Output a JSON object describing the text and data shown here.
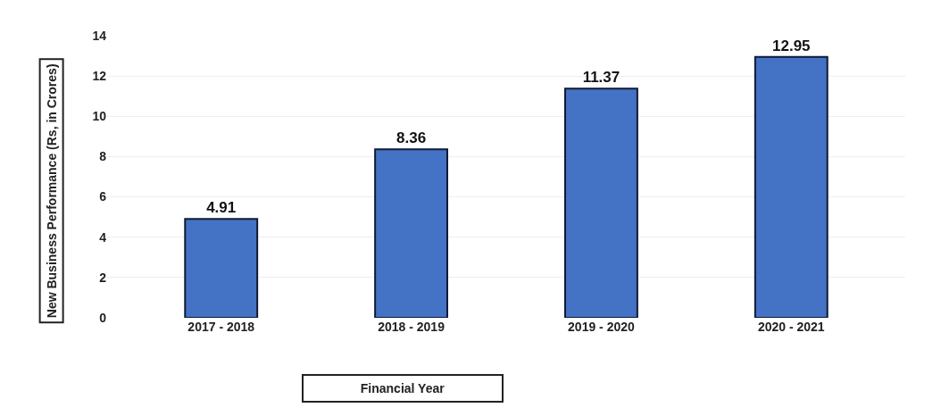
{
  "chart_data": {
    "type": "bar",
    "xlabel": "Financial Year",
    "ylabel": "New Business Performance (Rs, in Crores)",
    "categories": [
      "2017 - 2018",
      "2018 - 2019",
      "2019 - 2020",
      "2020 - 2021"
    ],
    "values": [
      4.91,
      8.36,
      11.37,
      12.95
    ],
    "color": "#4472c4",
    "ylim": [
      0,
      14
    ],
    "yticks": [
      0,
      2,
      4,
      6,
      8,
      10,
      12,
      14
    ],
    "grid": "y",
    "data_labels": true,
    "legend": false
  }
}
